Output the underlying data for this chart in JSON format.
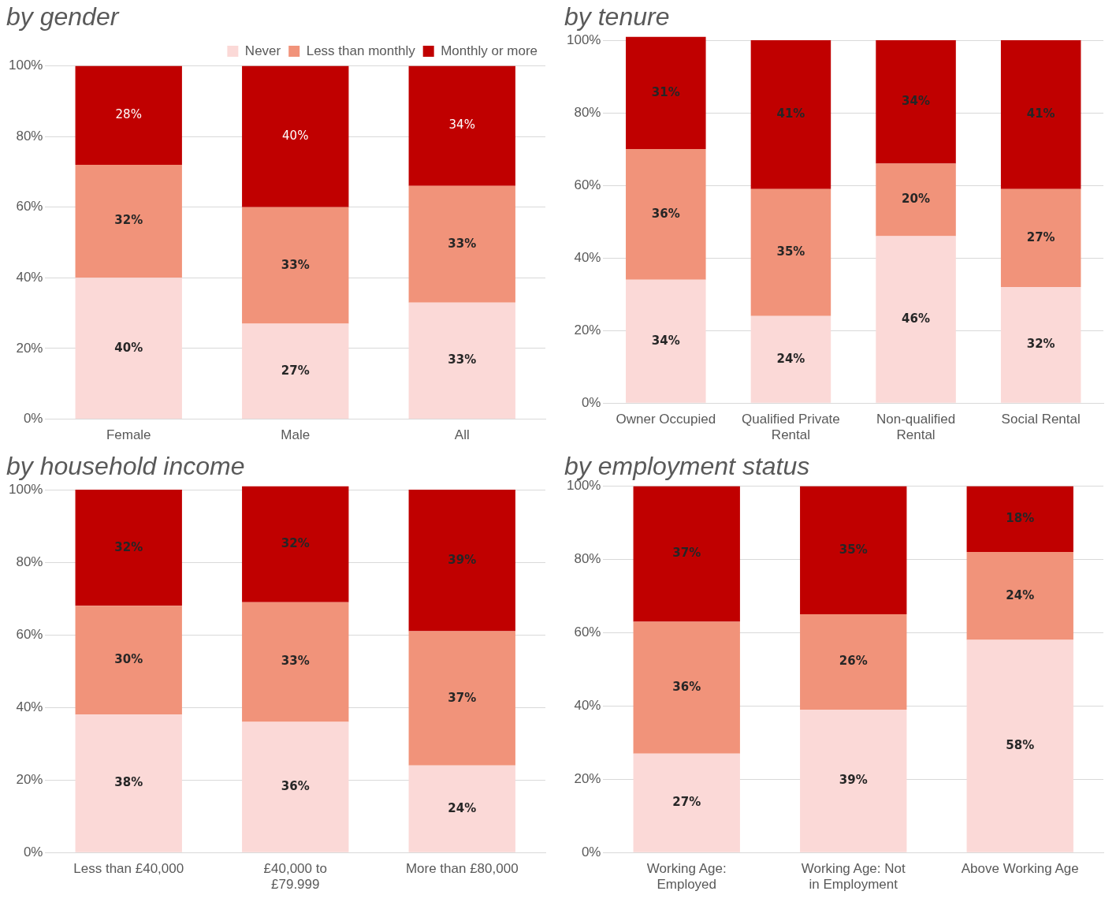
{
  "chart_data": [
    {
      "type": "bar",
      "title": "by gender",
      "stacked": true,
      "legend": "top",
      "categories": [
        "Female",
        "Male",
        "All"
      ],
      "ylim": [
        0,
        100
      ],
      "yticks": [
        {
          "value": 0,
          "label": "0%"
        },
        {
          "value": 20,
          "label": "20%"
        },
        {
          "value": 40,
          "label": "40%"
        },
        {
          "value": 60,
          "label": "60%"
        },
        {
          "value": 80,
          "label": "80%"
        },
        {
          "value": 100,
          "label": "100%"
        }
      ],
      "grid": "y",
      "series": [
        {
          "name": "Never",
          "color": "#fbd9d7",
          "values": [
            40,
            27,
            33
          ],
          "value_labels": [
            "40%",
            "27%",
            "33%"
          ]
        },
        {
          "name": "Less than monthly",
          "color": "#f1937a",
          "values": [
            32,
            33,
            33
          ],
          "value_labels": [
            "32%",
            "33%",
            "33%"
          ]
        },
        {
          "name": "Monthly or more",
          "color": "#c00000",
          "values": [
            28,
            40,
            34
          ],
          "value_labels": [
            "28%",
            "40%",
            "34%"
          ]
        }
      ]
    },
    {
      "type": "bar",
      "title": "by tenure",
      "stacked": true,
      "categories": [
        "Owner Occupied",
        "Qualified Private Rental",
        "Non-qualified Rental",
        "Social Rental"
      ],
      "ylim": [
        0,
        101
      ],
      "yticks": [
        {
          "value": 0,
          "label": "0%"
        },
        {
          "value": 20,
          "label": "20%"
        },
        {
          "value": 40,
          "label": "40%"
        },
        {
          "value": 60,
          "label": "60%"
        },
        {
          "value": 80,
          "label": "80%"
        },
        {
          "value": 100,
          "label": "100%"
        }
      ],
      "grid": "y",
      "series": [
        {
          "color": "#fbd9d7",
          "values": [
            34,
            24,
            46,
            32
          ],
          "value_labels": [
            "34%",
            "24%",
            "46%",
            "32%"
          ]
        },
        {
          "color": "#f1937a",
          "values": [
            36,
            35,
            20,
            27
          ],
          "value_labels": [
            "36%",
            "35%",
            "20%",
            "27%"
          ]
        },
        {
          "color": "#c00000",
          "values": [
            31,
            41,
            34,
            41
          ],
          "value_labels": [
            "31%",
            "41%",
            "34%",
            "41%"
          ]
        }
      ]
    },
    {
      "type": "bar",
      "title": "by household income",
      "stacked": true,
      "categories": [
        "Less than £40,000",
        "£40,000 to £79.999",
        "More than £80,000"
      ],
      "ylim": [
        0,
        101
      ],
      "yticks": [
        {
          "value": 0,
          "label": "0%"
        },
        {
          "value": 20,
          "label": "20%"
        },
        {
          "value": 40,
          "label": "40%"
        },
        {
          "value": 60,
          "label": "60%"
        },
        {
          "value": 80,
          "label": "80%"
        },
        {
          "value": 100,
          "label": "100%"
        }
      ],
      "grid": "y",
      "series": [
        {
          "color": "#fbd9d7",
          "values": [
            38,
            36,
            24
          ],
          "value_labels": [
            "38%",
            "36%",
            "24%"
          ]
        },
        {
          "color": "#f1937a",
          "values": [
            30,
            33,
            37
          ],
          "value_labels": [
            "30%",
            "33%",
            "37%"
          ]
        },
        {
          "color": "#c00000",
          "values": [
            32,
            32,
            39
          ],
          "value_labels": [
            "32%",
            "32%",
            "39%"
          ]
        }
      ]
    },
    {
      "type": "bar",
      "title": "by employment status",
      "stacked": true,
      "categories": [
        "Working Age: Employed",
        "Working Age: Not in Employment",
        "Above Working Age"
      ],
      "ylim": [
        0,
        100
      ],
      "yticks": [
        {
          "value": 0,
          "label": "0%"
        },
        {
          "value": 20,
          "label": "20%"
        },
        {
          "value": 40,
          "label": "40%"
        },
        {
          "value": 60,
          "label": "60%"
        },
        {
          "value": 80,
          "label": "80%"
        },
        {
          "value": 100,
          "label": "100%"
        }
      ],
      "grid": "y",
      "series": [
        {
          "color": "#fbd9d7",
          "values": [
            27,
            39,
            58
          ],
          "value_labels": [
            "27%",
            "39%",
            "58%"
          ]
        },
        {
          "color": "#f1937a",
          "values": [
            36,
            26,
            24
          ],
          "value_labels": [
            "36%",
            "26%",
            "24%"
          ]
        },
        {
          "color": "#c00000",
          "values": [
            37,
            35,
            18
          ],
          "value_labels": [
            "37%",
            "35%",
            "18%"
          ]
        }
      ]
    }
  ]
}
